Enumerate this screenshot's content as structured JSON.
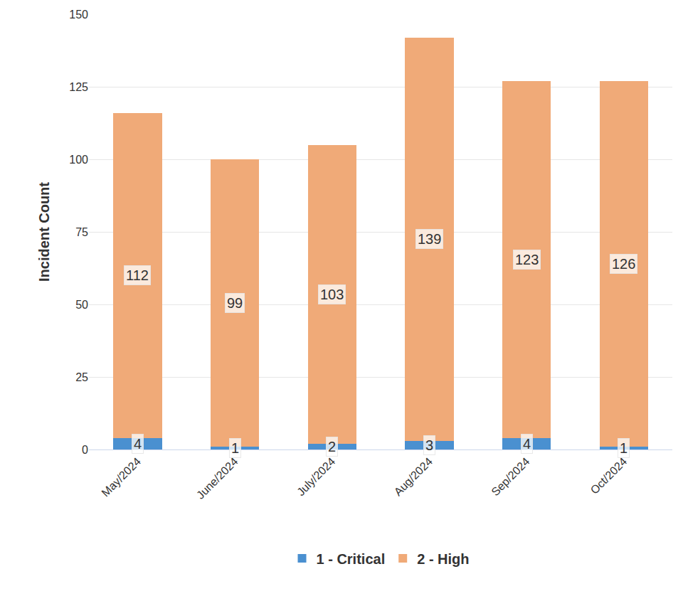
{
  "chart_data": {
    "type": "bar",
    "stacked": true,
    "data_labels": true,
    "grid": true,
    "legend": "bottom",
    "y_label": "Incident Count",
    "categories": [
      "May/2024",
      "June/2024",
      "July/2024",
      "Aug/2024",
      "Sep/2024",
      "Oct/2024"
    ],
    "series": [
      {
        "name": "1 - Critical",
        "color": "#4a90d0",
        "values": [
          4,
          1,
          2,
          3,
          4,
          1
        ]
      },
      {
        "name": "2 - High",
        "color": "#f0aa78",
        "values": [
          112,
          99,
          103,
          139,
          123,
          126
        ]
      }
    ],
    "ylim": [
      0,
      150
    ],
    "yticks": [
      0,
      25,
      50,
      75,
      100,
      125,
      150
    ]
  }
}
